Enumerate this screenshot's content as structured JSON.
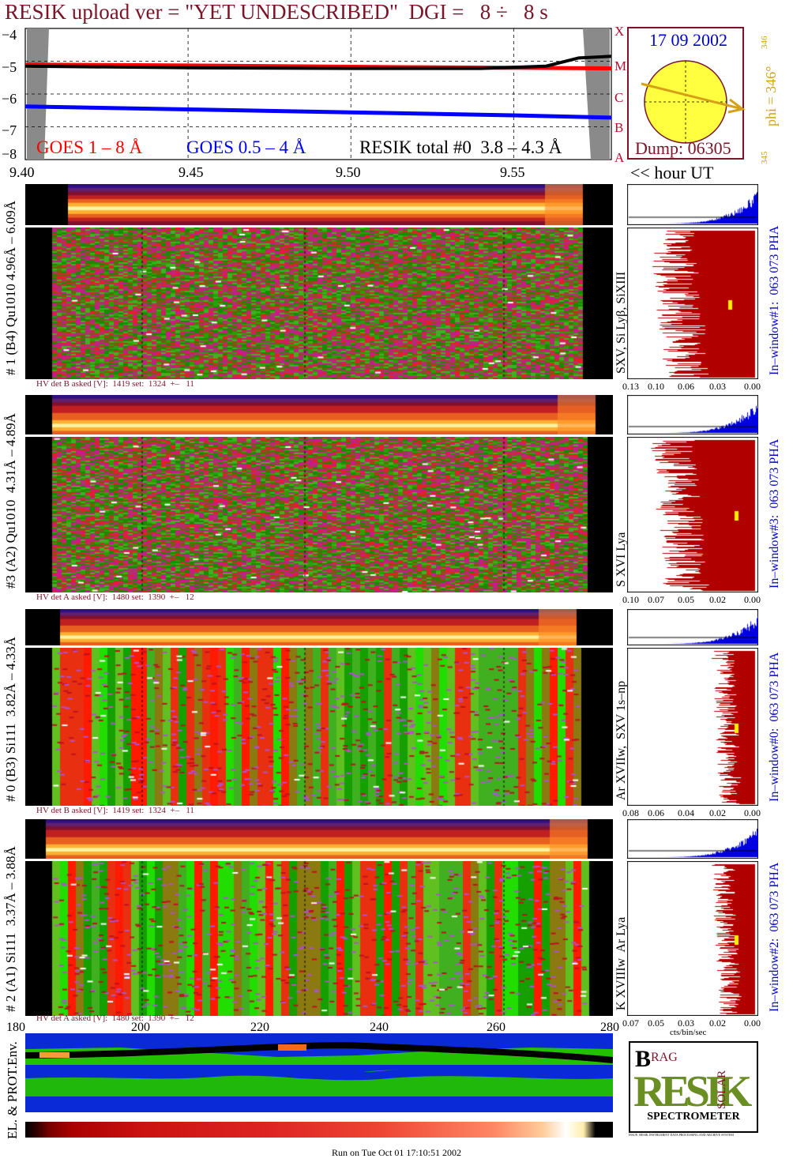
{
  "header": {
    "title": "RESIK upload ver = \"YET UNDESCRIBED\"  DGI =   8 ÷   8 s"
  },
  "goes": {
    "legend_red": "GOES 1 – 8 Å",
    "legend_blue": "GOES 0.5 – 4 Å",
    "legend_black": "RESIK total #0  3.8 – 4.3 Å",
    "yticks": [
      "−4",
      "−5",
      "−6",
      "−7",
      "−8"
    ],
    "class_letters": [
      "X",
      "M",
      "C",
      "B",
      "A"
    ],
    "xticks": [
      "9.40",
      "9.45",
      "9.50",
      "9.55"
    ],
    "hour_label": "<< hour UT"
  },
  "sun": {
    "date": "17 09 2002",
    "dump": "Dump: 06305",
    "phi": "phi = 346°",
    "phi_top": "346",
    "phi_bottom": "345"
  },
  "panels": [
    {
      "left_label": "# 1 (B4) Qu1010 4.96Å – 6.09Å",
      "hv_label": "HV det B asked [V]:  1419 set:  1324  +–   11",
      "line_label": "SXV, Si Lyβ, SiXIII",
      "window_label": "In–window#1:  063 073 PHA",
      "pha_ticks": [
        "0.13",
        "0.10",
        "0.06",
        "0.03",
        "0.00"
      ]
    },
    {
      "left_label": "#3 (A2) Qu1010  4.31Å – 4.89Å",
      "hv_label": "HV det A asked [V]:  1480 set:  1390  +–   12",
      "line_label": "S XVI Lya",
      "window_label": "In–window#3:  063 073 PHA",
      "pha_ticks": [
        "0.10",
        "0.07",
        "0.05",
        "0.02",
        "0.00"
      ]
    },
    {
      "left_label": "# 0 (B3) Si111  3.82Å – 4.33Å",
      "hv_label": "HV det B asked [V]:  1419 set:  1324  +–   11",
      "line_label": "Ar XVIIw,  SXV 1s–np",
      "window_label": "In–window#0:  063 073 PHA",
      "pha_ticks": [
        "0.08",
        "0.06",
        "0.04",
        "0.02",
        "0.00"
      ]
    },
    {
      "left_label": "# 2 (A1) Si111  3.37Å – 3.88Å",
      "hv_label": "HV det A asked [V]:  1480 set:  1390  +–   12",
      "line_label": "K XVIIIw  Ar Lya",
      "window_label": "In–window#2:  063 073 PHA",
      "pha_ticks": [
        "0.07",
        "0.05",
        "0.03",
        "0.02",
        "0.00"
      ],
      "pha_xlabel": "cts/bin/sec"
    }
  ],
  "bottom_axis": {
    "ticks": [
      "180",
      "200",
      "220",
      "240",
      "260",
      "280"
    ],
    "env_label": "EL. & PROT.Env."
  },
  "logo": {
    "b": "B",
    "ragg": "RAG",
    "solar": "SOLAR",
    "spectrometer": "SPECTROMETER",
    "fineprint": "ISSUE: RESIK INSTRUMENT DATA PROCESSING AND ARCHIVE SYSTEM"
  },
  "footer": {
    "run": "Run on Tue Oct 01 17:10:51 2002"
  },
  "colors": {
    "title": "#7a1428",
    "goes_red": "#ff0000",
    "goes_blue": "#0000ff",
    "pha_fill": "#b00000",
    "pha_blue": "#0000e0",
    "label_blue": "#0000cc",
    "phi_color": "#d4a017"
  },
  "chart_data": {
    "type": "line",
    "xlabel": "",
    "ylabel": "",
    "xlim": [
      9.4,
      9.58
    ],
    "ylim": [
      -8,
      -4
    ],
    "series": [
      {
        "name": "GOES 1 – 8 Å",
        "x": [
          9.4,
          9.45,
          9.5,
          9.55,
          9.58
        ],
        "values": [
          -5.1,
          -5.13,
          -5.17,
          -5.2,
          -5.22
        ]
      },
      {
        "name": "GOES 0.5 – 4 Å",
        "x": [
          9.4,
          9.45,
          9.5,
          9.55,
          9.58
        ],
        "values": [
          -6.38,
          -6.47,
          -6.56,
          -6.65,
          -6.72
        ]
      },
      {
        "name": "RESIK total #0  3.8 – 4.3 Å",
        "x": [
          9.4,
          9.45,
          9.5,
          9.54,
          9.56,
          9.57,
          9.58
        ],
        "values": [
          -5.15,
          -5.2,
          -5.22,
          -5.22,
          -5.15,
          -4.9,
          -4.85
        ]
      }
    ]
  }
}
